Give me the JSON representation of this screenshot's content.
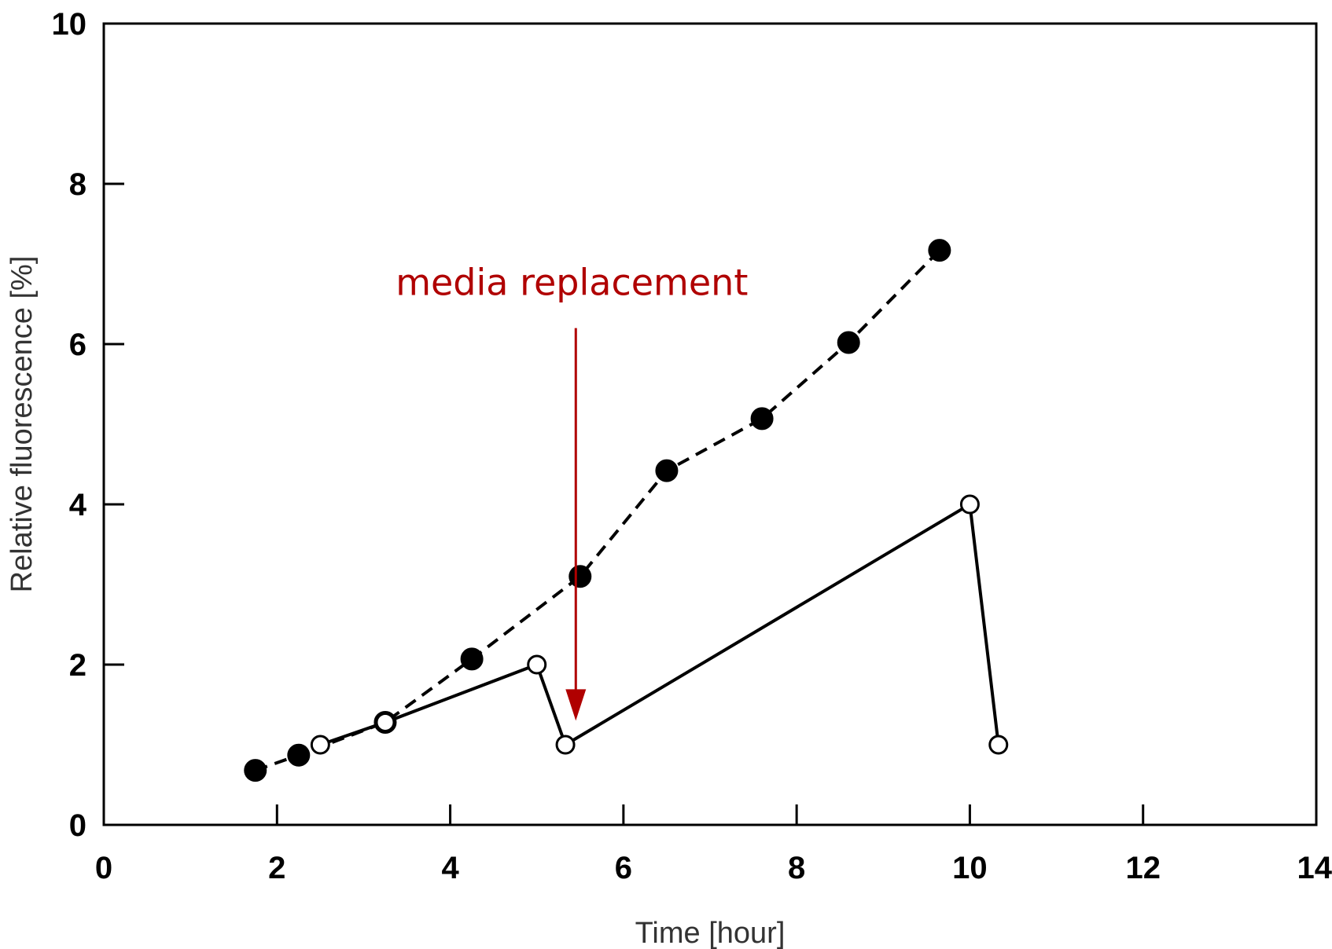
{
  "chart_data": {
    "type": "line",
    "title": "",
    "xlabel": "Time [hour]",
    "ylabel": "Relative fluorescence [%]",
    "xlim": [
      0,
      14
    ],
    "ylim": [
      0,
      10
    ],
    "xticks": [
      0,
      2,
      4,
      6,
      8,
      10,
      12,
      14
    ],
    "yticks": [
      0,
      2,
      4,
      6,
      8,
      10
    ],
    "xtick_labels": [
      "0",
      "2",
      "4",
      "6",
      "8",
      "10",
      "12",
      "14"
    ],
    "ytick_labels": [
      "0",
      "2",
      "4",
      "6",
      "8",
      "10"
    ],
    "grid": false,
    "legend": "none",
    "series": [
      {
        "line_style": "dashed",
        "marker": "filled-circle",
        "color": "#000000",
        "x": [
          1.75,
          2.25,
          3.25,
          4.25,
          5.5,
          6.5,
          7.6,
          8.6,
          9.65
        ],
        "y": [
          0.68,
          0.87,
          1.28,
          2.07,
          3.1,
          4.42,
          5.07,
          6.02,
          7.17
        ]
      },
      {
        "line_style": "solid",
        "marker": "open-circle",
        "color": "#000000",
        "x": [
          2.5,
          3.25,
          5.0,
          5.33,
          10.0,
          10.33
        ],
        "y": [
          1.0,
          1.28,
          2.0,
          1.0,
          4.0,
          1.0
        ]
      }
    ],
    "annotations": [
      {
        "text": "media replacement",
        "color": "#b00000",
        "arrow_x": 5.45,
        "arrow_y_start": 6.2,
        "arrow_y_end": 1.3
      }
    ]
  }
}
